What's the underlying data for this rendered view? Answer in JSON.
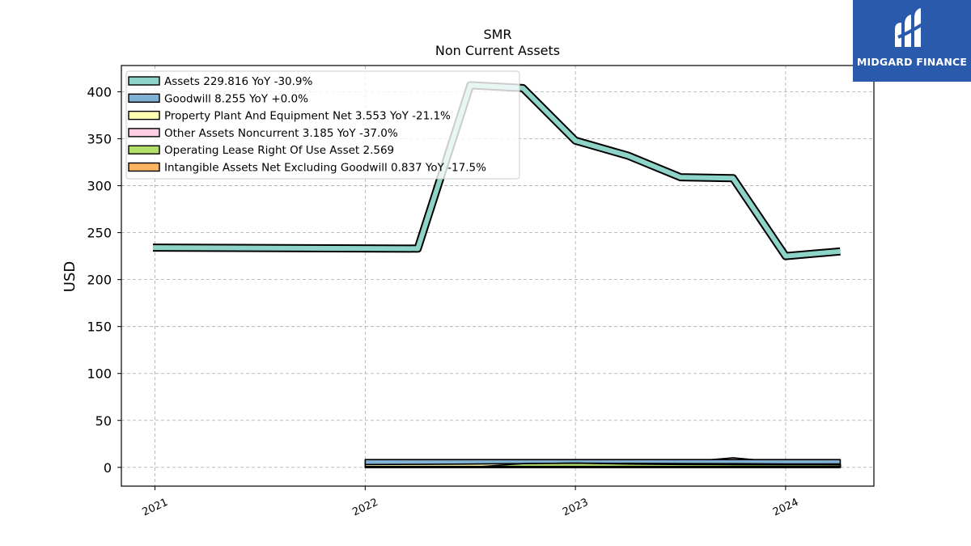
{
  "logo": {
    "text": "MIDGARD FINANCE",
    "background": "#2a5aac"
  },
  "chart_data": {
    "type": "line",
    "title": "SMR",
    "subtitle": "Non Current  Assets",
    "ylabel": "USD",
    "xlabel": "",
    "ylim": [
      -20,
      428
    ],
    "xlim": [
      2020.84,
      2024.42
    ],
    "yticks": [
      0,
      50,
      100,
      150,
      200,
      250,
      300,
      350,
      400
    ],
    "xticks": [
      {
        "value": 2021,
        "label": "2021"
      },
      {
        "value": 2022,
        "label": "2022"
      },
      {
        "value": 2023,
        "label": "2023"
      },
      {
        "value": 2024,
        "label": "2024"
      }
    ],
    "grid": true,
    "legend_position": "top-left",
    "series": [
      {
        "name": "Assets",
        "legend": "Assets  229.816 YoY -30.9%",
        "color": "#8dd3c7",
        "kind": "line",
        "x": [
          2020.99,
          2022.25,
          2022.5,
          2022.75,
          2023.0,
          2023.25,
          2023.5,
          2023.75,
          2024.0,
          2024.26
        ],
        "y": [
          234,
          233,
          407,
          404,
          348,
          332,
          309,
          308,
          225,
          230
        ]
      },
      {
        "name": "Goodwill",
        "legend": "Goodwill  8.255 YoY +0.0%",
        "color": "#80b1d3",
        "kind": "area",
        "x": [
          2022.0,
          2022.25,
          2022.5,
          2022.75,
          2023.0,
          2023.25,
          2023.5,
          2023.75,
          2024.0,
          2024.26
        ],
        "y": [
          8.26,
          8.26,
          8.26,
          8.26,
          8.26,
          8.26,
          8.26,
          8.26,
          8.26,
          8.26
        ]
      },
      {
        "name": "Property Plant And Equipment Net",
        "legend": "Property Plant And Equipment Net  3.553 YoY -21.1%",
        "color": "#ffffb3",
        "kind": "area",
        "x": [
          2022.0,
          2022.25,
          2022.5,
          2022.75,
          2023.0,
          2023.25,
          2023.5,
          2023.75,
          2024.0,
          2024.26
        ],
        "y": [
          3.0,
          3.2,
          3.5,
          4.0,
          4.5,
          4.3,
          4.1,
          4.0,
          3.7,
          3.6
        ]
      },
      {
        "name": "Other Assets Noncurrent",
        "legend": "Other Assets Noncurrent  3.185 YoY -37.0%",
        "color": "#fccde5",
        "kind": "area",
        "x": [
          2022.0,
          2022.25,
          2022.5,
          2022.75,
          2023.0,
          2023.25,
          2023.5,
          2023.75,
          2024.0,
          2024.26
        ],
        "y": [
          5.0,
          5.1,
          5.2,
          5.3,
          5.1,
          5.0,
          5.4,
          10.2,
          5.0,
          3.2
        ]
      },
      {
        "name": "Operating Lease Right Of Use Asset",
        "legend": "Operating Lease Right Of Use Asset  2.569",
        "color": "#b3de69",
        "kind": "area",
        "x": [
          2022.0,
          2022.25,
          2022.5,
          2022.75,
          2023.0,
          2023.25,
          2023.5,
          2023.75,
          2024.0,
          2024.26
        ],
        "y": [
          0,
          0,
          0,
          4.0,
          4.5,
          3.5,
          3.0,
          2.8,
          2.7,
          2.6
        ]
      },
      {
        "name": "Intangible Assets Net Excluding Goodwill",
        "legend": "Intangible Assets Net Excluding Goodwill  0.837 YoY -17.5%",
        "color": "#fdb462",
        "kind": "area",
        "x": [
          2022.0,
          2022.25,
          2022.5,
          2022.75,
          2023.0,
          2023.25,
          2023.5,
          2023.75,
          2024.0,
          2024.26
        ],
        "y": [
          1.0,
          1.0,
          1.0,
          1.0,
          1.0,
          0.95,
          0.9,
          0.88,
          0.85,
          0.84
        ]
      }
    ]
  }
}
